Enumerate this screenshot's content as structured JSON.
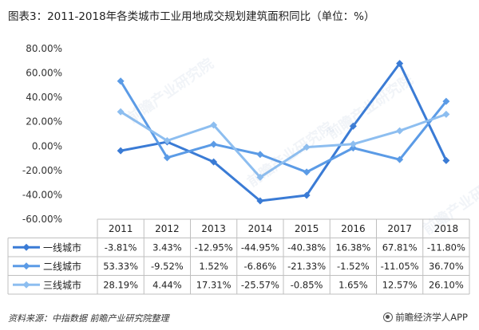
{
  "title": "图表3：2011-2018年各类城市工业用地成交规划建筑面积同比（单位：%）",
  "footer": {
    "source": "资料来源：中指数据 前瞻产业研究院整理",
    "brand": "前瞻经济学人APP"
  },
  "chart_data": {
    "type": "line",
    "categories": [
      "2011",
      "2012",
      "2013",
      "2014",
      "2015",
      "2016",
      "2017",
      "2018"
    ],
    "y_ticks": [
      "80.00%",
      "60.00%",
      "40.00%",
      "20.00%",
      "0.00%",
      "-20.00%",
      "-40.00%",
      "-60.00%"
    ],
    "ylim": [
      -60,
      80
    ],
    "grid": false,
    "legend": "data-table",
    "series": [
      {
        "name": "一线城市",
        "color": "#3A7BD5",
        "values": [
          -3.81,
          3.43,
          -12.95,
          -44.95,
          -40.38,
          16.38,
          67.81,
          -11.8
        ],
        "labels": [
          "-3.81%",
          "3.43%",
          "-12.95%",
          "-44.95%",
          "-40.38%",
          "16.38%",
          "67.81%",
          "-11.80%"
        ]
      },
      {
        "name": "二线城市",
        "color": "#5B9BE6",
        "values": [
          53.33,
          -9.52,
          1.52,
          -6.86,
          -21.33,
          -1.52,
          -11.05,
          36.7
        ],
        "labels": [
          "53.33%",
          "-9.52%",
          "1.52%",
          "-6.86%",
          "-21.33%",
          "-1.52%",
          "-11.05%",
          "36.70%"
        ]
      },
      {
        "name": "三线城市",
        "color": "#8DBEF0",
        "values": [
          28.19,
          4.44,
          17.31,
          -25.57,
          -0.85,
          1.65,
          12.57,
          26.1
        ],
        "labels": [
          "28.19%",
          "4.44%",
          "17.31%",
          "-25.57%",
          "-0.85%",
          "1.65%",
          "12.57%",
          "26.10%"
        ]
      }
    ]
  }
}
